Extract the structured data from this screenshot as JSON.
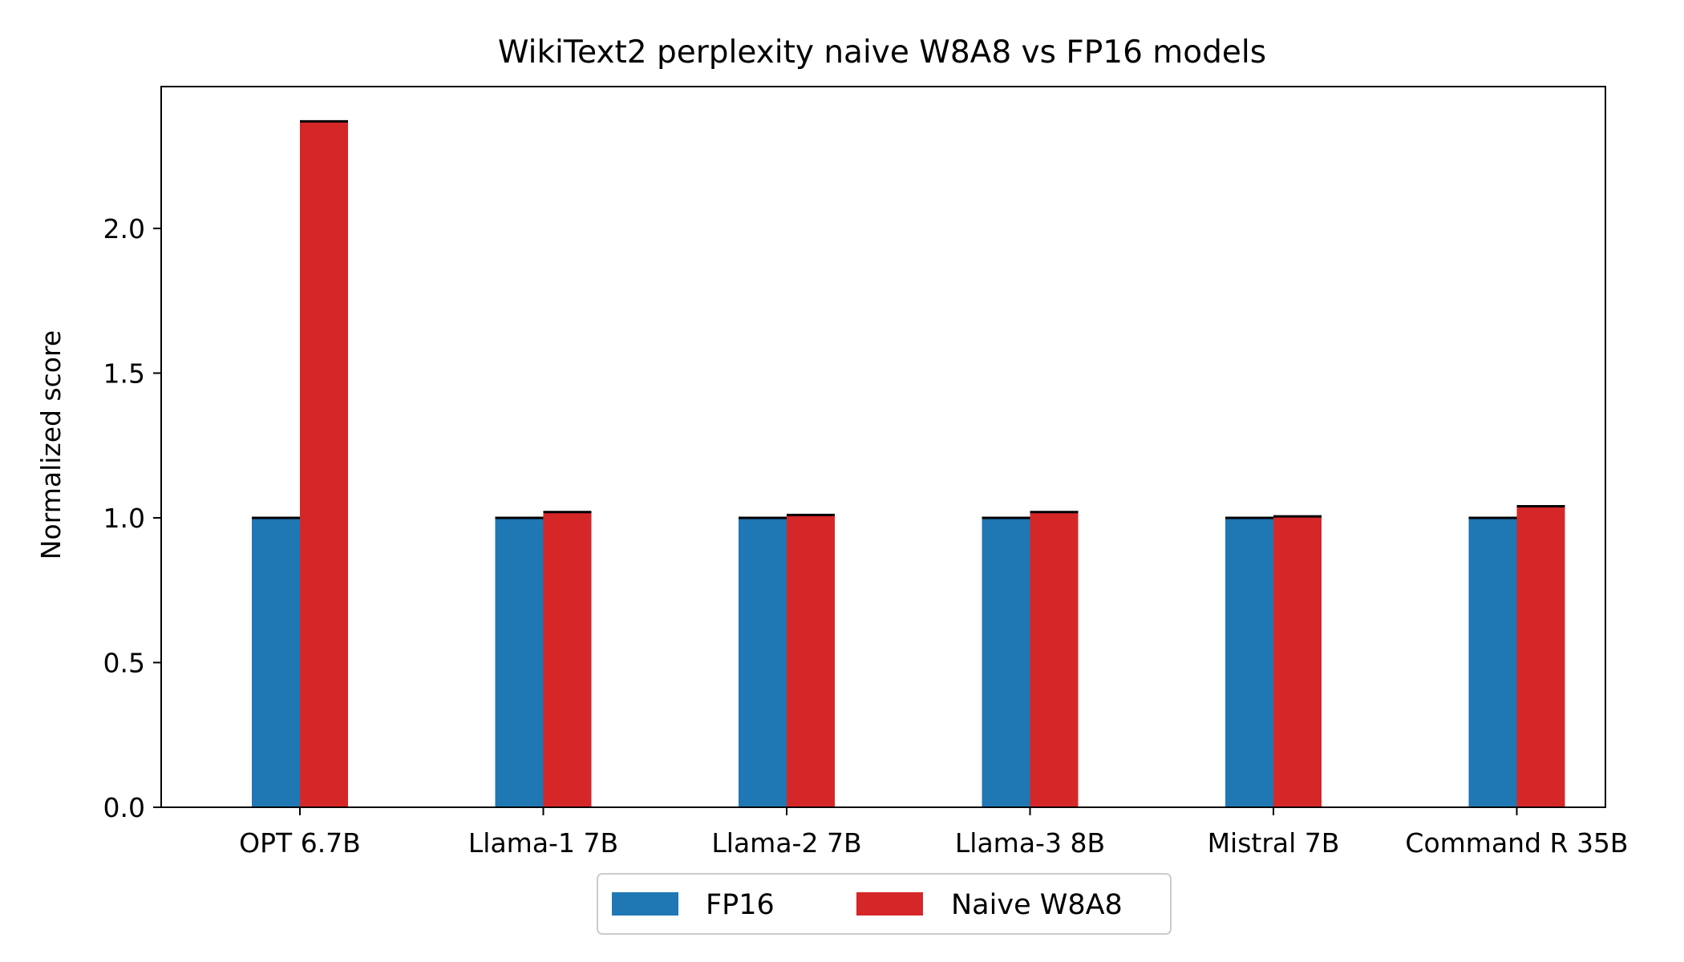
{
  "chart_data": {
    "type": "bar",
    "title": "WikiText2 perplexity naive W8A8 vs FP16 models",
    "xlabel": "",
    "ylabel": "Normalized score",
    "categories": [
      "OPT 6.7B",
      "Llama-1 7B",
      "Llama-2 7B",
      "Llama-3 8B",
      "Mistral 7B",
      "Command R 35B"
    ],
    "series": [
      {
        "name": "FP16",
        "color": "#1f77b4",
        "values": [
          1.0,
          1.0,
          1.0,
          1.0,
          1.0,
          1.0
        ]
      },
      {
        "name": "Naive W8A8",
        "color": "#d62728",
        "values": [
          2.37,
          1.02,
          1.01,
          1.02,
          1.005,
          1.04
        ]
      }
    ],
    "ylim": [
      0,
      2.49
    ],
    "yticks": [
      0.0,
      0.5,
      1.0,
      1.5,
      2.0
    ],
    "ytick_labels": [
      "0.0",
      "0.5",
      "1.0",
      "1.5",
      "2.0"
    ],
    "grid": false,
    "legend": "bottom-center"
  }
}
